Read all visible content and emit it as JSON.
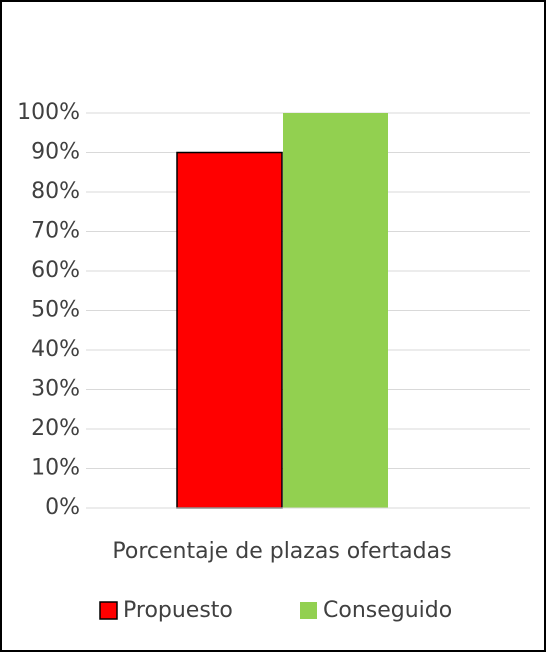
{
  "chart_data": {
    "type": "bar",
    "categories": [
      "Porcentaje de plazas ofertadas"
    ],
    "series": [
      {
        "name": "Propuesto",
        "color": "#ff0000",
        "values": [
          90
        ]
      },
      {
        "name": "Conseguido",
        "color": "#92d050",
        "values": [
          100
        ]
      }
    ],
    "ylim": [
      0,
      100
    ],
    "yticks": [
      {
        "value": 0,
        "label": "0%"
      },
      {
        "value": 10,
        "label": "10%"
      },
      {
        "value": 20,
        "label": "20%"
      },
      {
        "value": 30,
        "label": "30%"
      },
      {
        "value": 40,
        "label": "40%"
      },
      {
        "value": 50,
        "label": "50%"
      },
      {
        "value": 60,
        "label": "60%"
      },
      {
        "value": 70,
        "label": "70%"
      },
      {
        "value": 80,
        "label": "80%"
      },
      {
        "value": 90,
        "label": "90%"
      },
      {
        "value": 100,
        "label": "100%"
      }
    ],
    "grid": true,
    "legend": "bottom"
  }
}
